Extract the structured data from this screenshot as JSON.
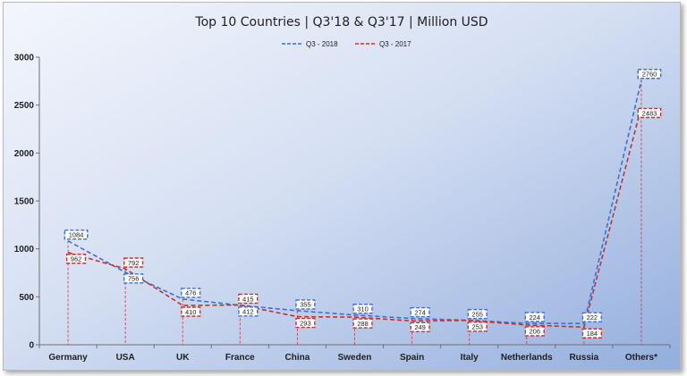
{
  "chart_data": {
    "type": "line",
    "title": "Top 10 Countries | Q3'18 & Q3'17 | Million USD",
    "xlabel": "",
    "ylabel": "",
    "ylim": [
      0,
      3000
    ],
    "yticks": [
      0,
      500,
      1000,
      1500,
      2000,
      2500,
      3000
    ],
    "grid": false,
    "legend_position": "top-center",
    "categories": [
      "Germany",
      "USA",
      "UK",
      "France",
      "China",
      "Sweden",
      "Spain",
      "Italy",
      "Netherlands",
      "Russia",
      "Others*"
    ],
    "series": [
      {
        "name": "Q3 - 2018",
        "color": "#3d6fd4",
        "values": [
          1084,
          756,
          476,
          412,
          355,
          310,
          274,
          255,
          224,
          222,
          2760
        ]
      },
      {
        "name": "Q3 - 2017",
        "color": "#c9302c",
        "values": [
          962,
          792,
          410,
          415,
          293,
          288,
          249,
          253,
          206,
          184,
          2483
        ]
      }
    ]
  }
}
